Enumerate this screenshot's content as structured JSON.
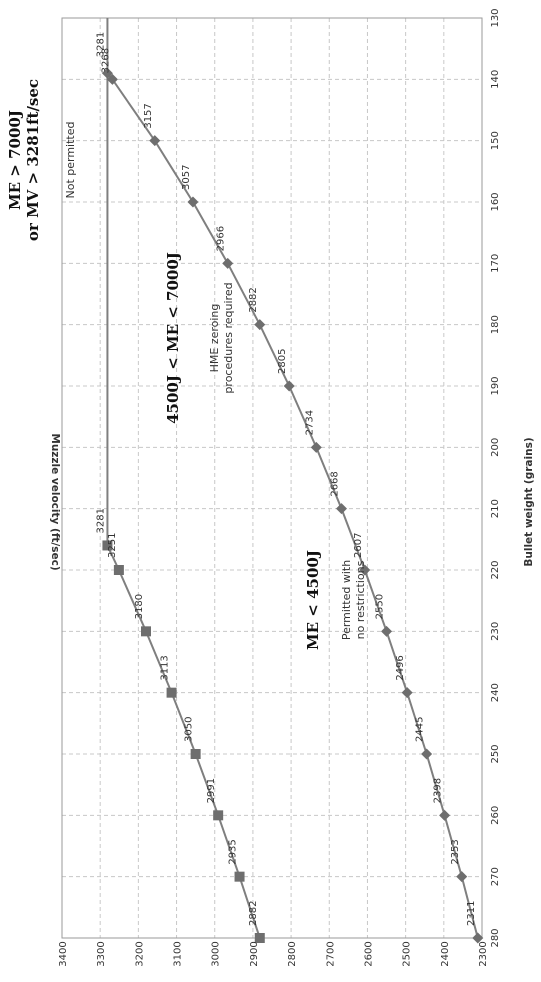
{
  "chart_data": {
    "type": "line",
    "xlabel": "Bullet weight (grains)",
    "ylabel": "Muzzle velocity (ft/sec)",
    "xlim": [
      130,
      280
    ],
    "ylim": [
      2300,
      3400
    ],
    "x_ticks": [
      130,
      140,
      150,
      160,
      170,
      180,
      190,
      200,
      210,
      220,
      230,
      240,
      250,
      260,
      270,
      280
    ],
    "y_ticks": [
      2300,
      2400,
      2500,
      2600,
      2700,
      2800,
      2900,
      3000,
      3100,
      3200,
      3300,
      3400
    ],
    "grid": true,
    "series": [
      {
        "marker": "diamond",
        "x": [
          139,
          140,
          150,
          160,
          170,
          180,
          190,
          200,
          210,
          220,
          230,
          240,
          250,
          260,
          270,
          280
        ],
        "y": [
          3281,
          3268,
          3157,
          3057,
          2966,
          2882,
          2805,
          2734,
          2668,
          2607,
          2550,
          2496,
          2445,
          2398,
          2353,
          2311
        ],
        "labels": [
          "3281",
          "3268",
          "3157",
          "3057",
          "2966",
          "2882",
          "2805",
          "2734",
          "2668",
          "2607",
          "2550",
          "2496",
          "2445",
          "2398",
          "2353",
          "2311"
        ]
      },
      {
        "marker": "square",
        "x": [
          216,
          220,
          230,
          240,
          250,
          260,
          270,
          280
        ],
        "y": [
          3281,
          3251,
          3180,
          3113,
          3050,
          2991,
          2935,
          2882
        ],
        "labels": [
          "3281",
          "3251",
          "3180",
          "3113",
          "3050",
          "2991",
          "2935",
          "2882"
        ]
      },
      {
        "marker": "none",
        "x": [
          130,
          216
        ],
        "y": [
          3281,
          3281
        ]
      }
    ],
    "annotations": [
      {
        "line1": "ME > 7000J",
        "line2": "or MV > 3281ft/sec",
        "note1": "Not permitted",
        "note2": ""
      },
      {
        "line1": "4500J < ME < 7000J",
        "line2": "",
        "note1": "HME zeroing",
        "note2": "procedures required"
      },
      {
        "line1": "ME < 4500J",
        "line2": "",
        "note1": "Permitted with",
        "note2": "no restrictions"
      }
    ],
    "colors": {
      "line": "#7f7f7f",
      "marker": "#6e6e6e",
      "grid": "#c8c8c8"
    }
  }
}
